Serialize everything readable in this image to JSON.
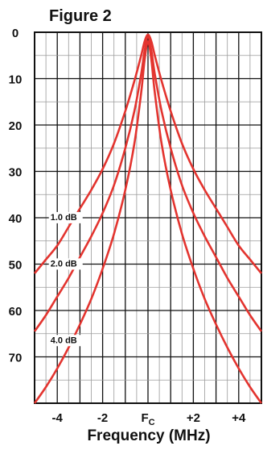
{
  "chart_data": {
    "type": "line",
    "title": "Figure 2",
    "xlabel": "Frequency (MHz)",
    "ylabel": "",
    "xlim": [
      -5,
      5
    ],
    "ylim": [
      0,
      80
    ],
    "y_inverted": true,
    "grid": true,
    "x_ticks": [
      {
        "value": -4,
        "label": "-4"
      },
      {
        "value": -2,
        "label": "-2"
      },
      {
        "value": 0,
        "label": "F",
        "sub": "C"
      },
      {
        "value": 2,
        "label": "+2"
      },
      {
        "value": 4,
        "label": "+4"
      }
    ],
    "y_ticks": [
      {
        "value": 0,
        "label": "0"
      },
      {
        "value": 10,
        "label": "10"
      },
      {
        "value": 20,
        "label": "20"
      },
      {
        "value": 30,
        "label": "30"
      },
      {
        "value": 40,
        "label": "40"
      },
      {
        "value": 50,
        "label": "50"
      },
      {
        "value": 60,
        "label": "60"
      },
      {
        "value": 70,
        "label": "70"
      }
    ],
    "series_color": "#e3342f",
    "series": [
      {
        "name": "1.0 dB",
        "x": [
          -5,
          -4.5,
          -4,
          -3.5,
          -3,
          -2.5,
          -2,
          -1.5,
          -1,
          -0.6,
          -0.3,
          -0.15,
          0,
          0.15,
          0.3,
          0.6,
          1,
          1.5,
          2,
          2.5,
          3,
          3.5,
          4,
          4.5,
          5
        ],
        "y": [
          52,
          49,
          46,
          42,
          38,
          34,
          29.5,
          24,
          17,
          10.5,
          5,
          2,
          0.5,
          2,
          5,
          10.5,
          17,
          24,
          29.5,
          34,
          38,
          42,
          46,
          49,
          52
        ]
      },
      {
        "name": "2.0 dB",
        "x": [
          -5,
          -4.5,
          -4,
          -3.5,
          -3,
          -2.5,
          -2,
          -1.5,
          -1,
          -0.6,
          -0.3,
          -0.15,
          0,
          0.15,
          0.3,
          0.6,
          1,
          1.5,
          2,
          2.5,
          3,
          3.5,
          4,
          4.5,
          5
        ],
        "y": [
          64.5,
          61,
          57,
          53,
          48.5,
          44,
          39,
          33,
          25,
          17,
          9,
          4,
          1,
          4,
          9,
          17,
          25,
          33,
          39,
          44,
          48.5,
          53,
          57,
          61,
          64.5
        ]
      },
      {
        "name": "4.0 dB",
        "x": [
          -5,
          -4.5,
          -4,
          -3.5,
          -3,
          -2.5,
          -2,
          -1.5,
          -1,
          -0.6,
          -0.3,
          -0.15,
          0,
          0.15,
          0.3,
          0.6,
          1,
          1.5,
          2,
          2.5,
          3,
          3.5,
          4,
          4.5,
          5
        ],
        "y": [
          80,
          76.5,
          72.5,
          68,
          63,
          57.5,
          51,
          43.5,
          34,
          24,
          13,
          6,
          2,
          6,
          13,
          24,
          34,
          43.5,
          51,
          57.5,
          63,
          68,
          72.5,
          76.5,
          80
        ]
      }
    ],
    "annotations": [
      {
        "text": "1.0 dB",
        "x": -4.3,
        "y": 40.5
      },
      {
        "text": "2.0 dB",
        "x": -4.3,
        "y": 50.5
      },
      {
        "text": "4.0 dB",
        "x": -4.3,
        "y": 67
      }
    ]
  }
}
